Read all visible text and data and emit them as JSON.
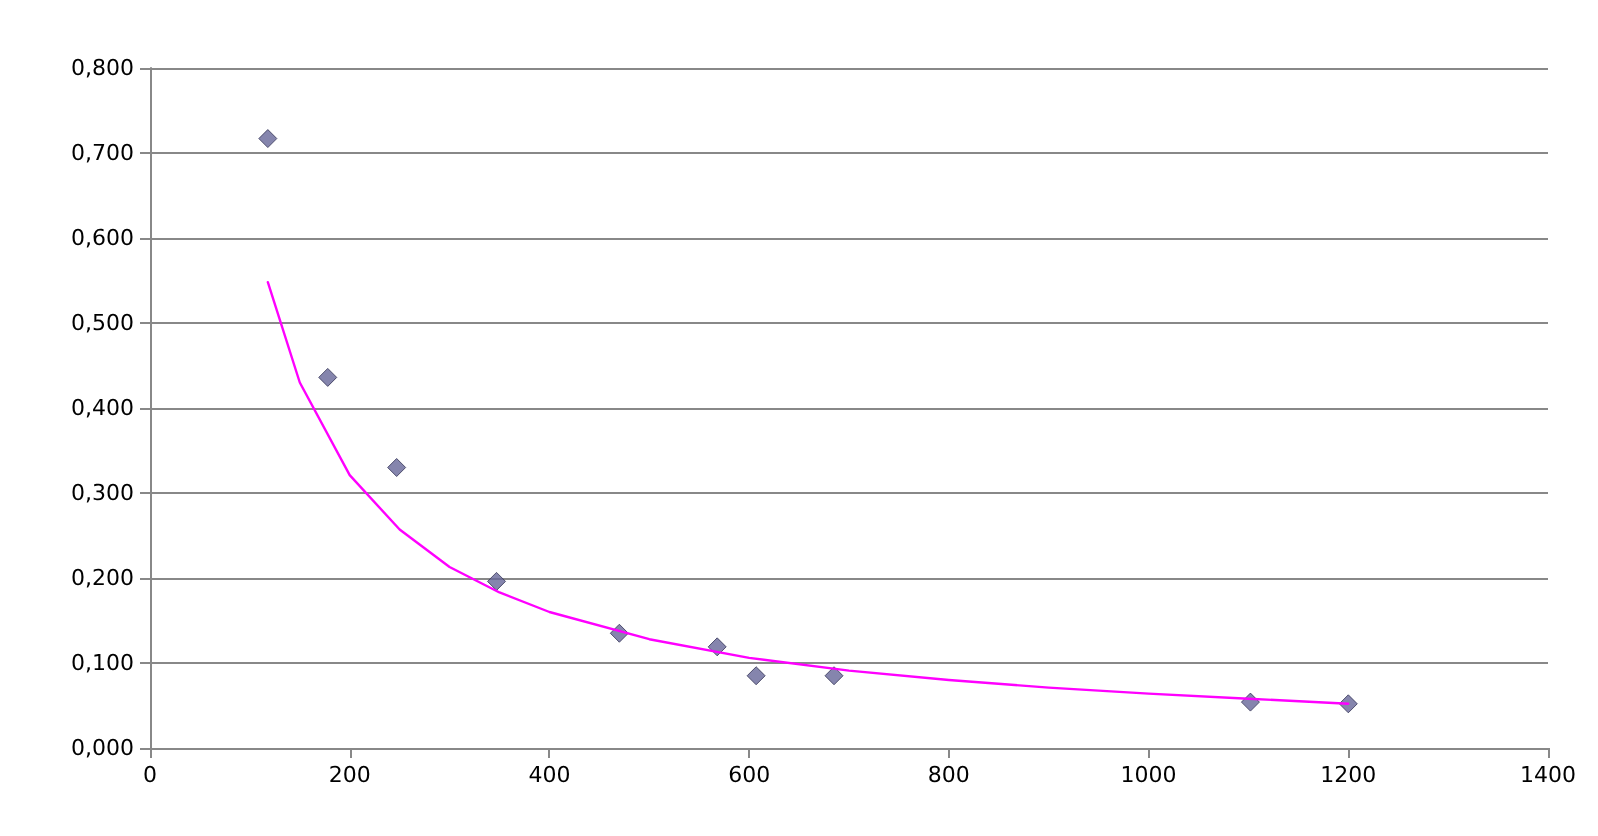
{
  "chart_data": {
    "type": "scatter",
    "xlim": [
      0,
      1400
    ],
    "xticks": [
      0,
      200,
      400,
      600,
      800,
      1000,
      1200,
      1400
    ],
    "ylim": [
      0,
      0.8
    ],
    "yticks": [
      {
        "value": 0,
        "label": "0,000"
      },
      {
        "value": 0.1,
        "label": "0,100"
      },
      {
        "value": 0.2,
        "label": "0,200"
      },
      {
        "value": 0.3,
        "label": "0,300"
      },
      {
        "value": 0.4,
        "label": "0,400"
      },
      {
        "value": 0.5,
        "label": "0,500"
      },
      {
        "value": 0.6,
        "label": "0,600"
      },
      {
        "value": 0.7,
        "label": "0,700"
      },
      {
        "value": 0.8,
        "label": "0,800"
      }
    ],
    "grid": "y",
    "series": [
      {
        "marker": "diamond",
        "color": "#666699",
        "x": [
          118,
          178,
          247,
          347,
          470,
          568,
          607,
          685,
          1102,
          1200
        ],
        "values": [
          0.717,
          0.436,
          0.33,
          0.196,
          0.135,
          0.119,
          0.085,
          0.085,
          0.054,
          0.052
        ]
      },
      {
        "type": "line",
        "marker": "none",
        "line_style": "solid",
        "color": "#ff00ff",
        "x": [
          118,
          150,
          200,
          250,
          300,
          350,
          400,
          500,
          600,
          700,
          800,
          900,
          1000,
          1100,
          1200
        ],
        "values": [
          0.548,
          0.43,
          0.321,
          0.257,
          0.213,
          0.183,
          0.16,
          0.128,
          0.106,
          0.091,
          0.08,
          0.071,
          0.064,
          0.058,
          0.052
        ]
      }
    ]
  }
}
